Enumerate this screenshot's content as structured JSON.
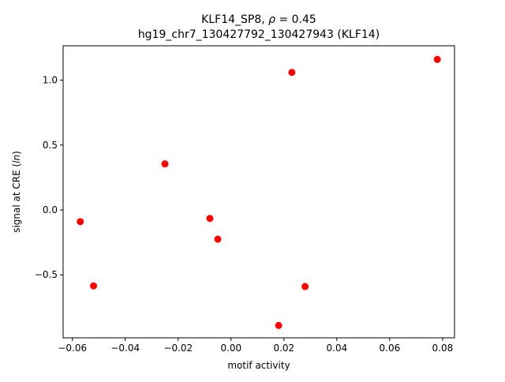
{
  "chart_data": {
    "type": "scatter",
    "title_line1_prefix": "KLF14_SP8, ",
    "title_line1_rho": "ρ",
    "title_line1_suffix": " = 0.45",
    "title_line2": "hg19_chr7_130427792_130427943 (KLF14)",
    "xlabel": "motif activity",
    "ylabel_prefix": "signal at CRE (",
    "ylabel_italic": "ln",
    "ylabel_suffix": ")",
    "xlim": [
      -0.0635,
      0.0845
    ],
    "ylim": [
      -0.985,
      1.265
    ],
    "xticks": [
      {
        "value": -0.06,
        "label": "−0.06"
      },
      {
        "value": -0.04,
        "label": "−0.04"
      },
      {
        "value": -0.02,
        "label": "−0.02"
      },
      {
        "value": 0.0,
        "label": "0.00"
      },
      {
        "value": 0.02,
        "label": "0.02"
      },
      {
        "value": 0.04,
        "label": "0.04"
      },
      {
        "value": 0.06,
        "label": "0.06"
      },
      {
        "value": 0.08,
        "label": "0.08"
      }
    ],
    "yticks": [
      {
        "value": -0.5,
        "label": "−0.5"
      },
      {
        "value": 0.0,
        "label": "0.0"
      },
      {
        "value": 0.5,
        "label": "0.5"
      },
      {
        "value": 1.0,
        "label": "1.0"
      }
    ],
    "grid": false,
    "marker_color": "#ff0000",
    "points": [
      {
        "x": -0.057,
        "y": -0.09
      },
      {
        "x": -0.052,
        "y": -0.585
      },
      {
        "x": -0.025,
        "y": 0.355
      },
      {
        "x": -0.008,
        "y": -0.065
      },
      {
        "x": -0.005,
        "y": -0.225
      },
      {
        "x": 0.018,
        "y": -0.89
      },
      {
        "x": 0.023,
        "y": 1.06
      },
      {
        "x": 0.028,
        "y": -0.59
      },
      {
        "x": 0.078,
        "y": 1.16
      }
    ]
  }
}
